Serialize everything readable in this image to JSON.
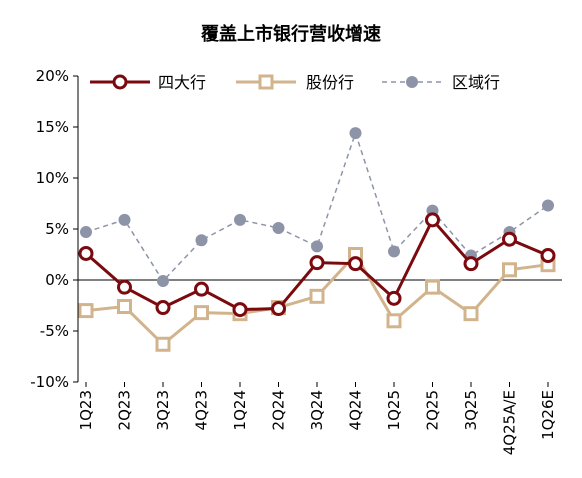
{
  "chart_data": {
    "type": "line",
    "title": "覆盖上市银行营收增速",
    "xlabel": "",
    "ylabel": "",
    "categories": [
      "1Q23",
      "2Q23",
      "3Q23",
      "4Q23",
      "1Q24",
      "2Q24",
      "3Q24",
      "4Q24",
      "1Q25",
      "2Q25",
      "3Q25",
      "4Q25A/E",
      "1Q26E"
    ],
    "y_ticks": [
      "20%",
      "15%",
      "10%",
      "5%",
      "0%",
      "-5%",
      "-10%"
    ],
    "ylim": [
      -10,
      20
    ],
    "legend_position": "top",
    "grid": false,
    "series": [
      {
        "name": "四大行",
        "style": "solid",
        "marker": "circle",
        "color": "#7b0a0f",
        "values": [
          2.6,
          -0.7,
          -2.7,
          -0.9,
          -2.9,
          -2.8,
          1.7,
          1.6,
          -1.8,
          5.9,
          1.6,
          4.0,
          2.4
        ]
      },
      {
        "name": "股份行",
        "style": "solid",
        "marker": "square",
        "color": "#d2b48c",
        "values": [
          -3.0,
          -2.6,
          -6.3,
          -3.2,
          -3.3,
          -2.7,
          -1.6,
          2.5,
          -4.0,
          -0.7,
          -3.3,
          1.0,
          1.5
        ]
      },
      {
        "name": "区域行",
        "style": "dashed",
        "marker": "dot",
        "color": "#8e94a8",
        "values": [
          4.7,
          5.9,
          -0.1,
          3.9,
          5.9,
          5.1,
          3.3,
          14.4,
          2.8,
          6.8,
          2.4,
          4.7,
          7.3
        ]
      }
    ]
  }
}
